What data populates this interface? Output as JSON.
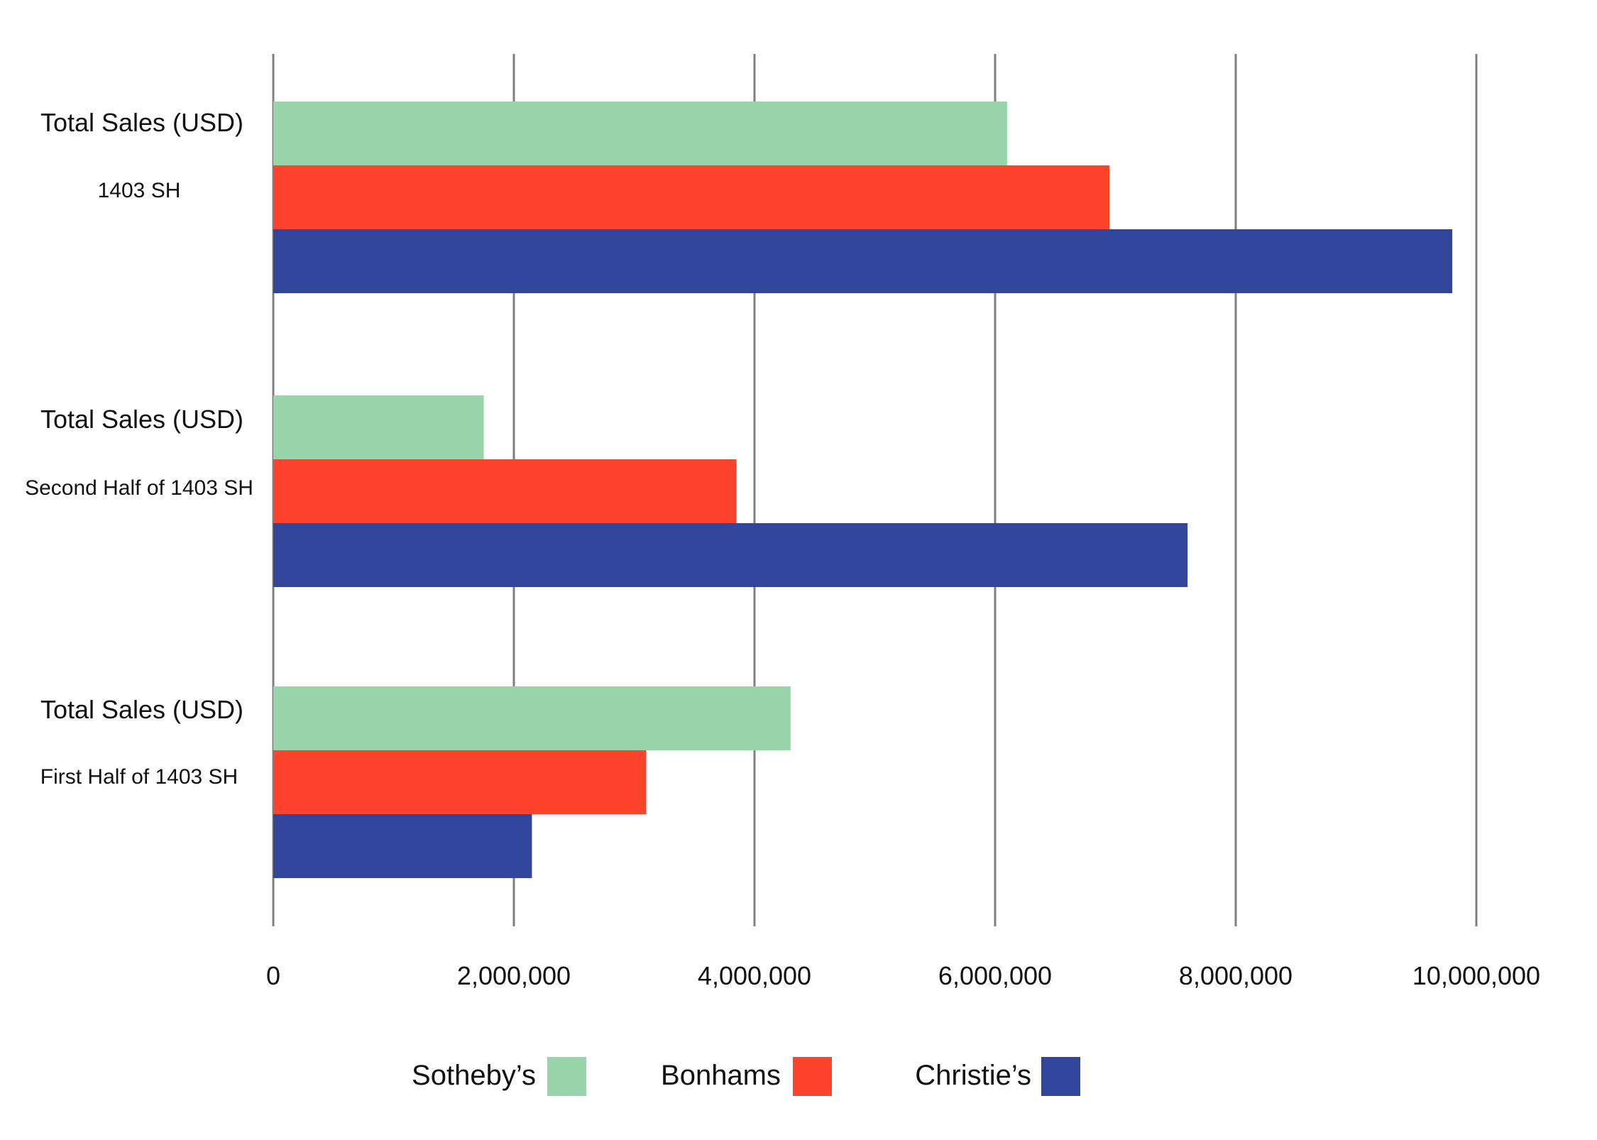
{
  "chart_data": {
    "type": "bar",
    "orientation": "horizontal",
    "title": "",
    "xlabel": "",
    "ylabel": "",
    "xlim": [
      0,
      10000000
    ],
    "x_ticks": [
      0,
      2000000,
      4000000,
      6000000,
      8000000,
      10000000
    ],
    "x_tick_labels": [
      "0",
      "2,000,000",
      "4,000,000",
      "6,000,000",
      "8,000,000",
      "10,000,000"
    ],
    "grid": "vertical",
    "legend_position": "bottom-center",
    "categories": [
      {
        "title": "Total Sales (USD)",
        "subtitle": "1403 SH"
      },
      {
        "title": "Total Sales (USD)",
        "subtitle": "Second Half of 1403 SH"
      },
      {
        "title": "Total Sales (USD)",
        "subtitle": "First Half of 1403 SH"
      }
    ],
    "series": [
      {
        "name": "Sotheby’s",
        "color": "#98d5aa",
        "values": [
          6100000,
          1750000,
          4300000
        ]
      },
      {
        "name": "Bonhams",
        "color": "#fd432b",
        "values": [
          6950000,
          3850000,
          3100000
        ]
      },
      {
        "name": "Christie’s",
        "color": "#31459a",
        "values": [
          9800000,
          7600000,
          2150000
        ]
      }
    ]
  }
}
